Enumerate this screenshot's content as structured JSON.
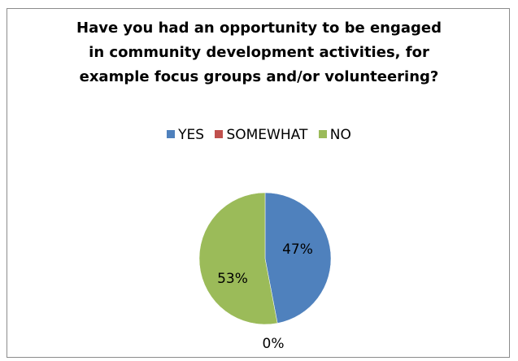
{
  "chart_data": {
    "type": "pie",
    "title_lines": [
      "Have you had an opportunity to be engaged",
      "in community development activities, for",
      "example focus groups and/or volunteering?"
    ],
    "categories": [
      "YES",
      "SOMEWHAT",
      "NO"
    ],
    "values": [
      47,
      0,
      53
    ],
    "data_labels": [
      "47%",
      "0%",
      "53%"
    ],
    "colors": [
      "#4f81bd",
      "#c0504d",
      "#9bbb59"
    ],
    "legend_position": "top"
  }
}
